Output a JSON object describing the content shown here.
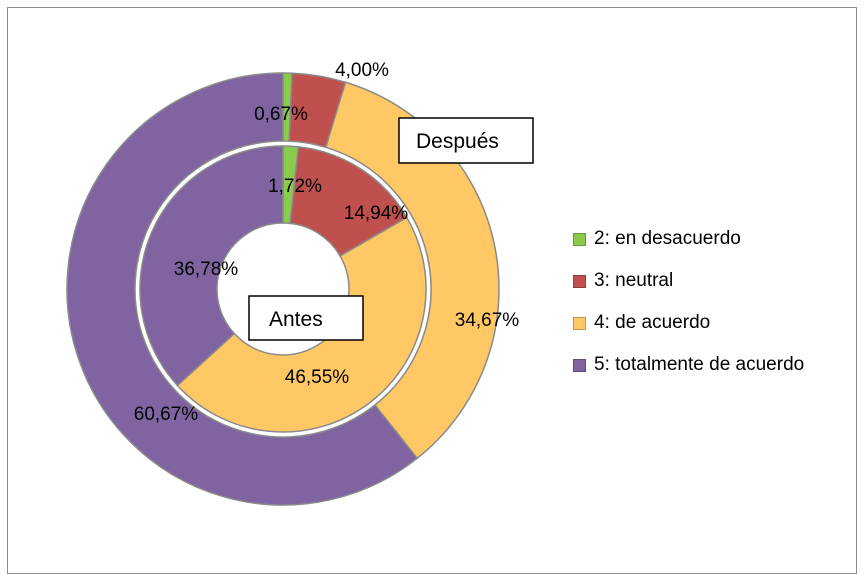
{
  "chart_data": {
    "type": "pie",
    "subtype": "doughnut",
    "categories": [
      "2: en desacuerdo",
      "3: neutral",
      "4: de acuerdo",
      "5: totalmente de acuerdo"
    ],
    "colors": [
      "#8ACB4E",
      "#C0504D",
      "#FFC864",
      "#8064A2"
    ],
    "series": [
      {
        "ring": "inner",
        "callout": "Antes",
        "values": [
          1.72,
          14.94,
          46.55,
          36.78
        ],
        "labels": [
          "1,72%",
          "14,94%",
          "46,55%",
          "36,78%"
        ]
      },
      {
        "ring": "outer",
        "callout": "Después",
        "values": [
          0.67,
          4.0,
          34.67,
          60.67
        ],
        "labels": [
          "0,67%",
          "4,00%",
          "34,67%",
          "60,67%"
        ]
      }
    ],
    "legend_position": "right"
  }
}
